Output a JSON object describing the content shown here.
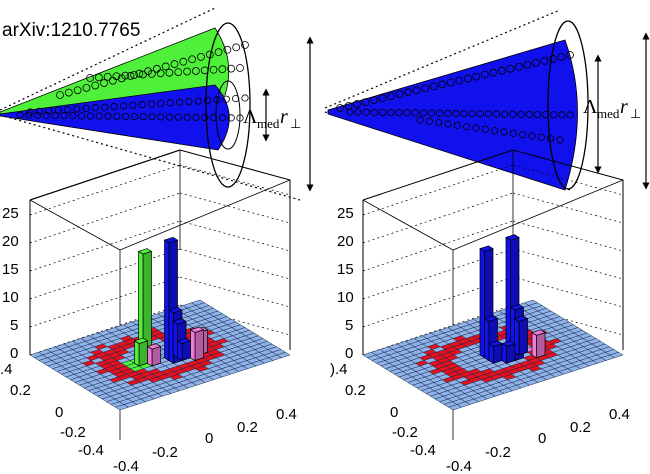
{
  "header": {
    "arxiv_label": "arXiv:1210.7765"
  },
  "labels": {
    "lambda_main": "Λ",
    "lambda_sub": "med",
    "r_main": "r",
    "r_sub_left": "⊥",
    "r_sub_right": "⊥"
  },
  "colors": {
    "green": "#4ef03a",
    "blue": "#1111ee",
    "lattice": "#8fb3e6",
    "red": "#e8101a",
    "pink": "#f07ad8"
  },
  "left_panel": {
    "z_ticks": [
      "25",
      "20",
      "15",
      "10",
      "5",
      "0"
    ],
    "y_ticks": [
      ".4",
      "0.2",
      "0",
      "-0.2",
      "-0.4"
    ],
    "x_ticks": [
      "-0.4",
      "-0.2",
      "0",
      "0.2",
      "0.4"
    ]
  },
  "right_panel": {
    "z_ticks": [
      "25",
      "20",
      "15",
      "10",
      "5",
      "0"
    ],
    "y_ticks": [
      ").4",
      "0.2",
      "0",
      "-0.2",
      "-0.4"
    ],
    "x_ticks": [
      "-0.4",
      "-0.2",
      "0",
      "0.2",
      "0.4"
    ]
  }
}
